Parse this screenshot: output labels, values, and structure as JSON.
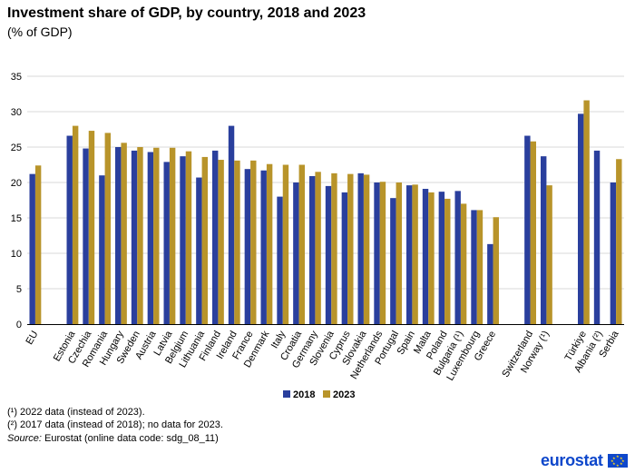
{
  "header": {
    "title": "Investment share of GDP, by country, 2018 and 2023",
    "subtitle": "(% of GDP)"
  },
  "footnotes": {
    "note1": "(¹) 2022 data (instead of 2023).",
    "note2": "(²) 2017 data (instead of 2018); no data for 2023.",
    "source_label": "Source:",
    "source_text": "Eurostat (online data code: sdg_08_11)"
  },
  "logo": {
    "text": "eurostat"
  },
  "colors": {
    "series_2018": "#2a3f9d",
    "series_2023": "#b8942a",
    "grid": "#d9d9d9"
  },
  "chart_data": {
    "type": "bar",
    "title": "Investment share of GDP, by country, 2018 and 2023",
    "subtitle": "(% of GDP)",
    "xlabel": "",
    "ylabel": "",
    "ylim": [
      0,
      35
    ],
    "yticks": [
      0,
      5,
      10,
      15,
      20,
      25,
      30,
      35
    ],
    "grid": true,
    "legend_position": "bottom-center",
    "groups": [
      [
        "EU"
      ],
      [
        "Estonia",
        "Czechia",
        "Romania",
        "Hungary",
        "Sweden",
        "Austria",
        "Latvia",
        "Belgium",
        "Lithuania",
        "Finland",
        "Ireland",
        "France",
        "Denmark",
        "Italy",
        "Croatia",
        "Germany",
        "Slovenia",
        "Cyprus",
        "Slovakia",
        "Netherlands",
        "Portugal",
        "Spain",
        "Malta",
        "Poland",
        "Bulgaria (¹)",
        "Luxembourg",
        "Greece"
      ],
      [
        "Switzerland",
        "Norway (¹)"
      ],
      [
        "Türkiye",
        "Albania (²)",
        "Serbia"
      ]
    ],
    "categories": [
      "EU",
      "Estonia",
      "Czechia",
      "Romania",
      "Hungary",
      "Sweden",
      "Austria",
      "Latvia",
      "Belgium",
      "Lithuania",
      "Finland",
      "Ireland",
      "France",
      "Denmark",
      "Italy",
      "Croatia",
      "Germany",
      "Slovenia",
      "Cyprus",
      "Slovakia",
      "Netherlands",
      "Portugal",
      "Spain",
      "Malta",
      "Poland",
      "Bulgaria (¹)",
      "Luxembourg",
      "Greece",
      "Switzerland",
      "Norway (¹)",
      "Türkiye",
      "Albania (²)",
      "Serbia"
    ],
    "series": [
      {
        "name": "2018",
        "values": [
          21.2,
          26.6,
          24.8,
          21.0,
          25.0,
          24.5,
          24.3,
          22.9,
          23.7,
          20.7,
          24.5,
          28.0,
          21.9,
          21.7,
          18.0,
          20.0,
          20.9,
          19.5,
          18.6,
          21.3,
          20.0,
          17.8,
          19.6,
          19.1,
          18.7,
          18.8,
          16.1,
          11.3,
          26.6,
          23.7,
          29.7,
          24.5,
          20.0
        ]
      },
      {
        "name": "2023",
        "values": [
          22.4,
          28.0,
          27.3,
          27.0,
          25.6,
          25.0,
          24.9,
          24.9,
          24.4,
          23.6,
          23.2,
          23.1,
          23.1,
          22.6,
          22.5,
          22.5,
          21.5,
          21.3,
          21.2,
          21.1,
          20.1,
          20.0,
          19.7,
          18.6,
          17.7,
          17.0,
          16.1,
          15.1,
          25.8,
          19.6,
          31.6,
          null,
          23.3
        ]
      }
    ]
  }
}
